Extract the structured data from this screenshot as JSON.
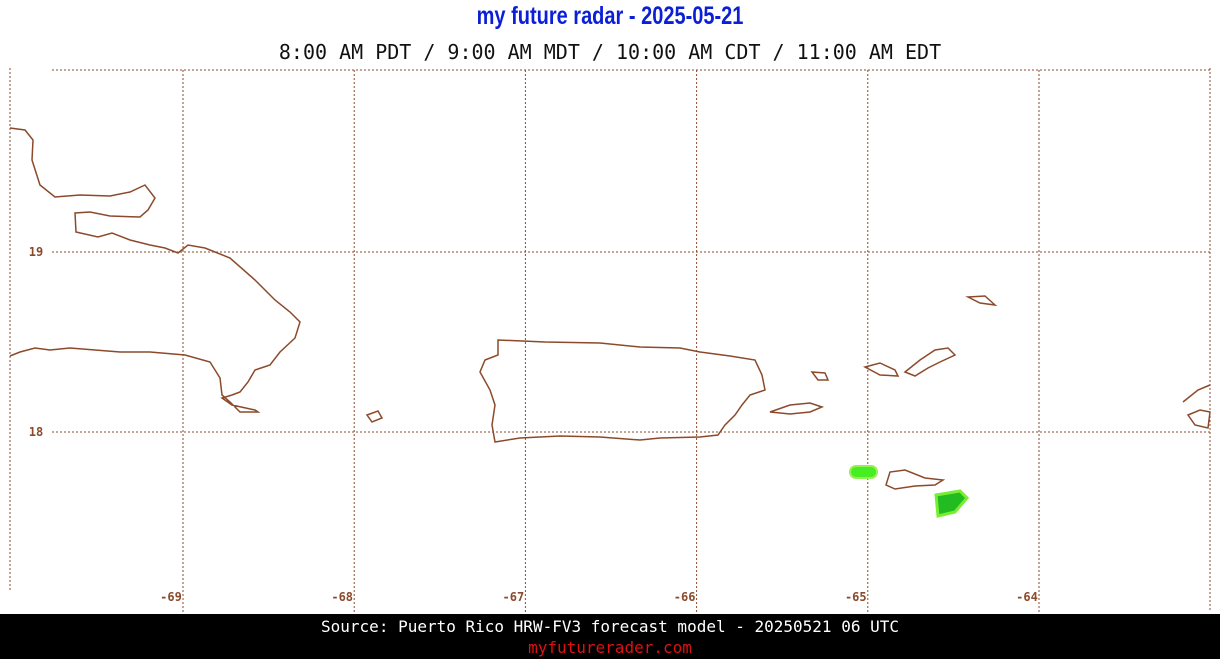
{
  "header": {
    "title": "my future radar - 2025-05-21",
    "subtitle": "8:00 AM PDT /  9:00 AM MDT / 10:00 AM CDT / 11:00 AM EDT"
  },
  "map": {
    "lon_labels": [
      -69,
      -68,
      -67,
      -66,
      -65,
      -64
    ],
    "lat_labels": [
      19,
      18
    ]
  },
  "footer": {
    "source": "Source: Puerto Rico HRW-FV3 forecast model - 20250521 06 UTC",
    "site": "myfuturerader.com"
  }
}
